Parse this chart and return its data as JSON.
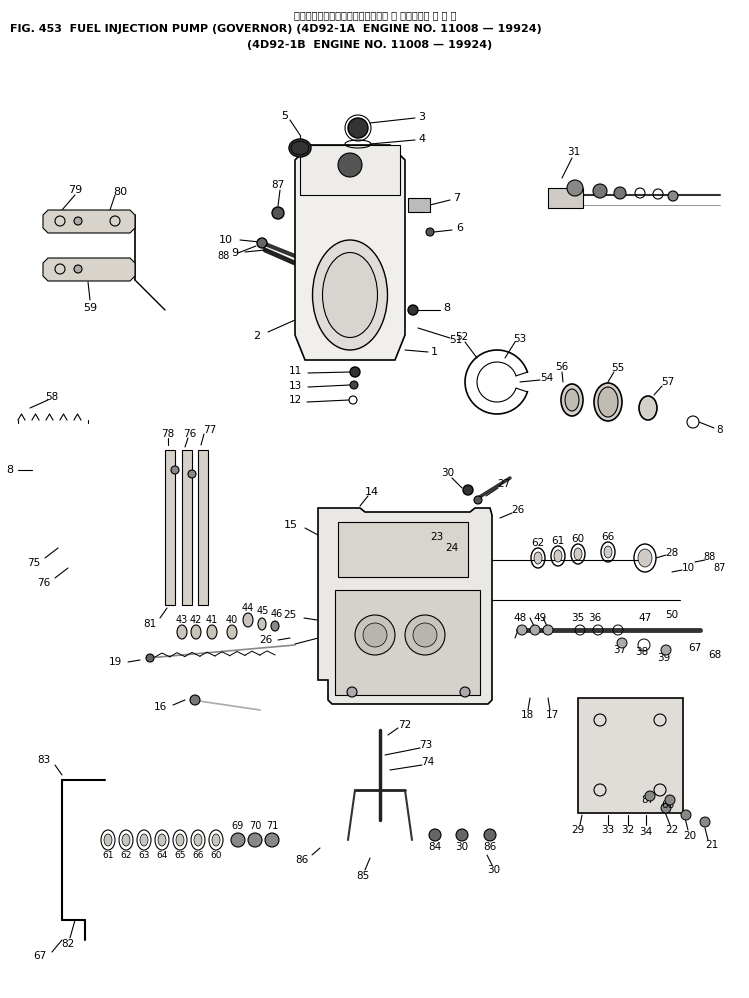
{
  "title_line1_jp": "フェルインジェクションポンプ　ガ バ ナ　　　適 用 号 機",
  "title_line2": "FIG. 453  FUEL INJECTION PUMP (GOVERNOR) (4D92-1A  ENGINE NO. 11008 — 19924)",
  "title_line3": "(4D92-1B  ENGINE NO. 11008 — 19924)",
  "bg_color": "#ffffff",
  "text_color": "#000000",
  "line_color": "#000000",
  "fig_width": 7.49,
  "fig_height": 9.98,
  "dpi": 100
}
